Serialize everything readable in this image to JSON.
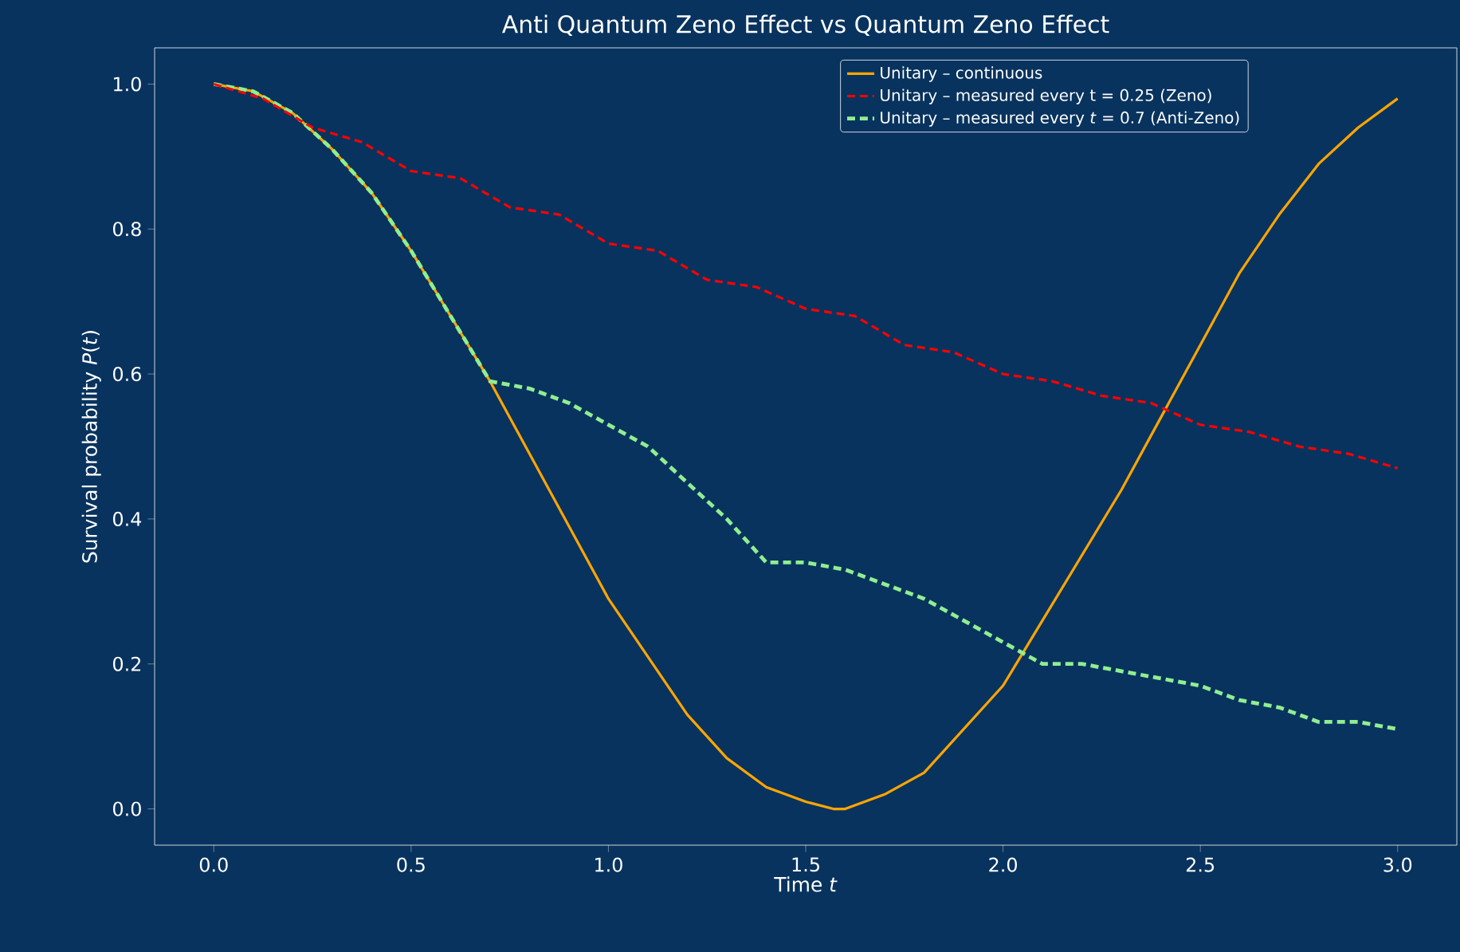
{
  "chart_data": {
    "type": "line",
    "title": "Anti Quantum Zeno Effect vs Quantum Zeno Effect",
    "xlabel": "Time  *t*",
    "ylabel": "Survival probability  *P*(*t*)",
    "xlim": [
      -0.15,
      3.15
    ],
    "ylim": [
      -0.05,
      1.05
    ],
    "xticks": [
      {
        "value": 0,
        "label": "0.0"
      },
      0.5,
      {
        "value": 1,
        "label": "1.0"
      },
      1.5,
      {
        "value": 2,
        "label": "2.0"
      },
      2.5,
      {
        "value": 3,
        "label": "3.0"
      }
    ],
    "yticks": [
      {
        "value": 0,
        "label": "0.0"
      },
      0.2,
      0.4,
      0.6,
      0.8,
      {
        "value": 1,
        "label": "1.0"
      }
    ],
    "legend": "top right",
    "marker": "none",
    "grid": false,
    "series": [
      {
        "name": "Unitary – continuous",
        "color": "#ffa500",
        "line_style": "solid",
        "x": [
          0,
          0.1,
          0.2,
          0.3,
          0.4,
          0.5,
          0.6,
          0.7,
          0.8,
          0.9,
          1.0,
          1.1,
          1.2,
          1.3,
          1.4,
          1.5,
          1.57,
          1.6,
          1.7,
          1.8,
          1.9,
          2.0,
          2.1,
          2.2,
          2.3,
          2.4,
          2.5,
          2.6,
          2.7,
          2.8,
          2.9,
          3.0
        ],
        "values": [
          1,
          0.99,
          0.96,
          0.91,
          0.85,
          0.77,
          0.68,
          0.59,
          0.49,
          0.39,
          0.29,
          0.21,
          0.13,
          0.07,
          0.03,
          0.01,
          0,
          0.0,
          0.02,
          0.05,
          0.11,
          0.17,
          0.26,
          0.35,
          0.44,
          0.54,
          0.64,
          0.74,
          0.82,
          0.89,
          0.94,
          0.98
        ]
      },
      {
        "name": "Unitary – measured every t = 0.25 (Zeno)",
        "color": "#ff0000",
        "line_style": "dashed",
        "x": [
          0,
          0.125,
          0.25,
          0.375,
          0.5,
          0.625,
          0.75,
          0.875,
          1.0,
          1.125,
          1.25,
          1.375,
          1.5,
          1.625,
          1.75,
          1.875,
          2.0,
          2.125,
          2.25,
          2.375,
          2.5,
          2.625,
          2.75,
          2.875,
          3.0
        ],
        "values": [
          1,
          0.98,
          0.94,
          0.92,
          0.88,
          0.87,
          0.83,
          0.82,
          0.78,
          0.77,
          0.73,
          0.72,
          0.69,
          0.68,
          0.64,
          0.63,
          0.6,
          0.59,
          0.57,
          0.56,
          0.53,
          0.52,
          0.5,
          0.49,
          0.47
        ]
      },
      {
        "name": "Unitary – measured every *t* = 0.7  (Anti-Zeno)",
        "color": "#90ee90",
        "line_style": "dashed",
        "x": [
          0,
          0.1,
          0.2,
          0.3,
          0.4,
          0.5,
          0.6,
          0.7,
          0.8,
          0.9,
          1.0,
          1.1,
          1.2,
          1.3,
          1.4,
          1.5,
          1.6,
          1.7,
          1.8,
          1.9,
          2.0,
          2.1,
          2.2,
          2.3,
          2.4,
          2.5,
          2.6,
          2.7,
          2.8,
          2.9,
          3.0
        ],
        "values": [
          1,
          0.99,
          0.96,
          0.91,
          0.85,
          0.77,
          0.68,
          0.59,
          0.58,
          0.56,
          0.53,
          0.5,
          0.45,
          0.4,
          0.34,
          0.34,
          0.33,
          0.31,
          0.29,
          0.26,
          0.23,
          0.2,
          0.2,
          0.19,
          0.18,
          0.17,
          0.15,
          0.14,
          0.12,
          0.12,
          0.11
        ]
      }
    ]
  }
}
